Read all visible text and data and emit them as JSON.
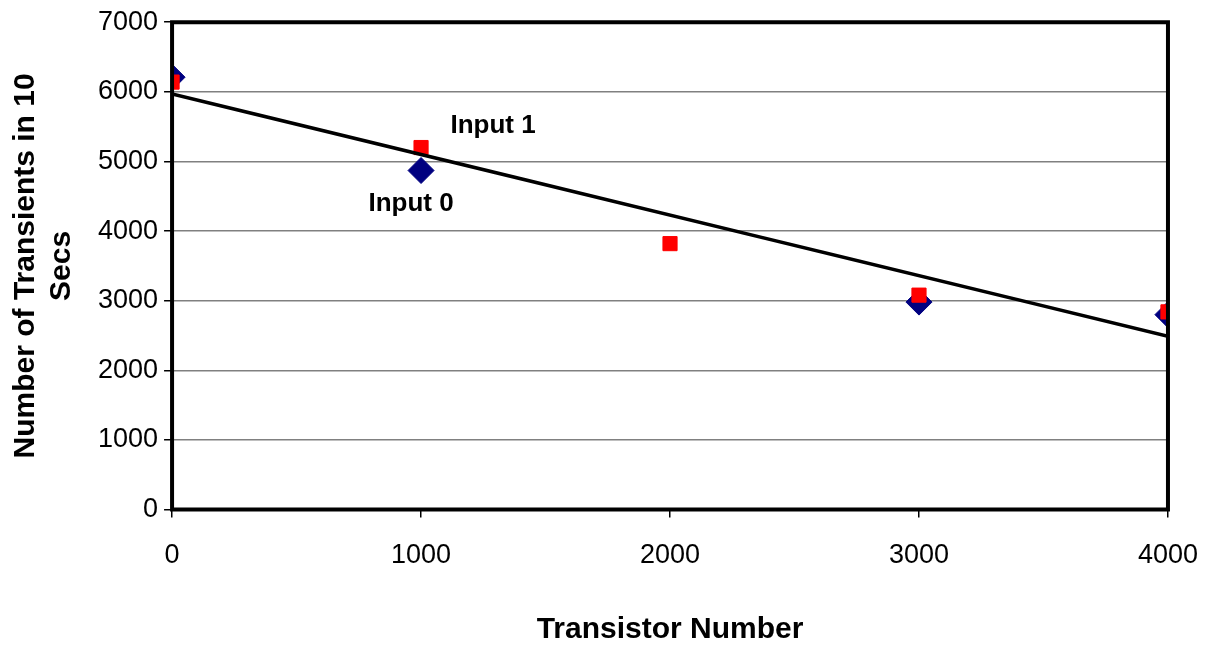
{
  "chart_data": {
    "type": "scatter",
    "xlabel": "Transistor Number",
    "ylabel": "Number of Transients in 10 Secs",
    "xlim": [
      0,
      4000
    ],
    "xticks": [
      0,
      1000,
      2000,
      3000,
      4000
    ],
    "ylim": [
      0,
      7000
    ],
    "yticks": [
      0,
      1000,
      2000,
      3000,
      4000,
      5000,
      6000,
      7000
    ],
    "grid": "y",
    "legend": false,
    "series": [
      {
        "name": "Input 0",
        "marker": "diamond",
        "color": "#000080",
        "x": [
          0,
          1000,
          2000,
          3000,
          4000
        ],
        "values": [
          6210,
          4870,
          null,
          2980,
          2800
        ]
      },
      {
        "name": "Input 1",
        "marker": "square",
        "color": "#ff0000",
        "x": [
          0,
          1000,
          2000,
          3000,
          4000
        ],
        "values": [
          6140,
          5200,
          3820,
          3080,
          2840
        ]
      },
      {
        "type": "line",
        "marker": "none",
        "line_style": "solid",
        "color": "#000000",
        "x": [
          0,
          4000
        ],
        "values": [
          5970,
          2490
        ]
      }
    ]
  }
}
